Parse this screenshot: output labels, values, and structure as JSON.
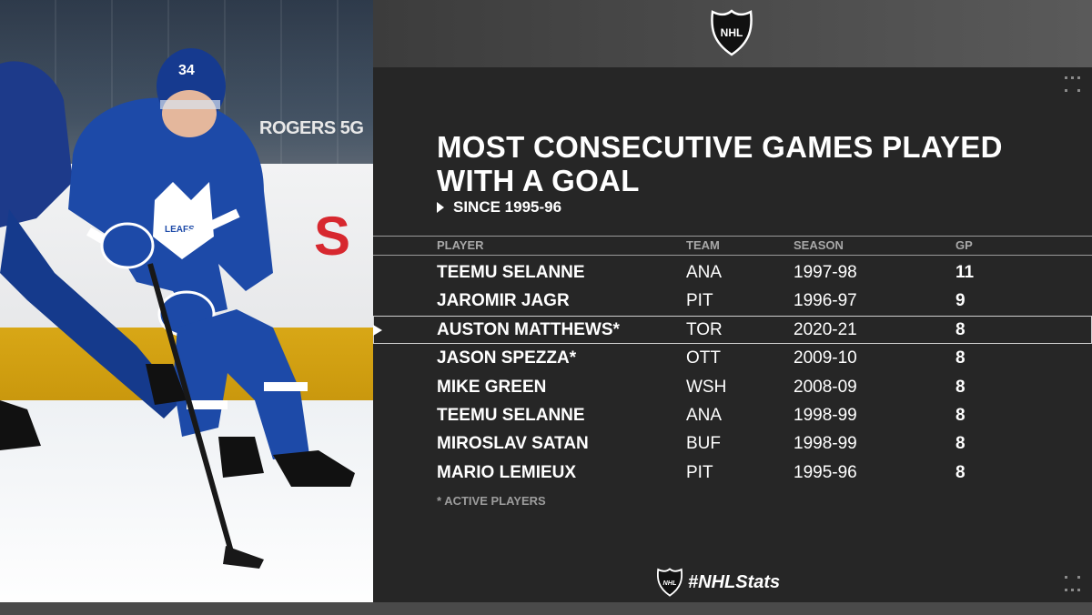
{
  "title": "MOST CONSECUTIVE GAMES PLAYED WITH A GOAL",
  "subtitle": "SINCE 1995-96",
  "headers": {
    "player": "PLAYER",
    "team": "TEAM",
    "season": "SEASON",
    "gp": "GP"
  },
  "rows": [
    {
      "player": "TEEMU SELANNE",
      "team": "ANA",
      "season": "1997-98",
      "gp": "11"
    },
    {
      "player": "JAROMIR JAGR",
      "team": "PIT",
      "season": "1996-97",
      "gp": "9"
    },
    {
      "player": "AUSTON MATTHEWS*",
      "team": "TOR",
      "season": "2020-21",
      "gp": "8"
    },
    {
      "player": "JASON SPEZZA*",
      "team": "OTT",
      "season": "2009-10",
      "gp": "8"
    },
    {
      "player": "MIKE GREEN",
      "team": "WSH",
      "season": "2008-09",
      "gp": "8"
    },
    {
      "player": "TEEMU SELANNE",
      "team": "ANA",
      "season": "1998-99",
      "gp": "8"
    },
    {
      "player": "MIROSLAV SATAN",
      "team": "BUF",
      "season": "1998-99",
      "gp": "8"
    },
    {
      "player": "MARIO LEMIEUX",
      "team": "PIT",
      "season": "1995-96",
      "gp": "8"
    }
  ],
  "footnote": "* ACTIVE PLAYERS",
  "hashtag": "#NHLStats",
  "logo_text": "NHL",
  "photo": {
    "sponsor": "ROGERS 5G"
  },
  "colors": {
    "panel": "#262626",
    "text": "#ffffff",
    "muted": "#a8a8a8"
  }
}
